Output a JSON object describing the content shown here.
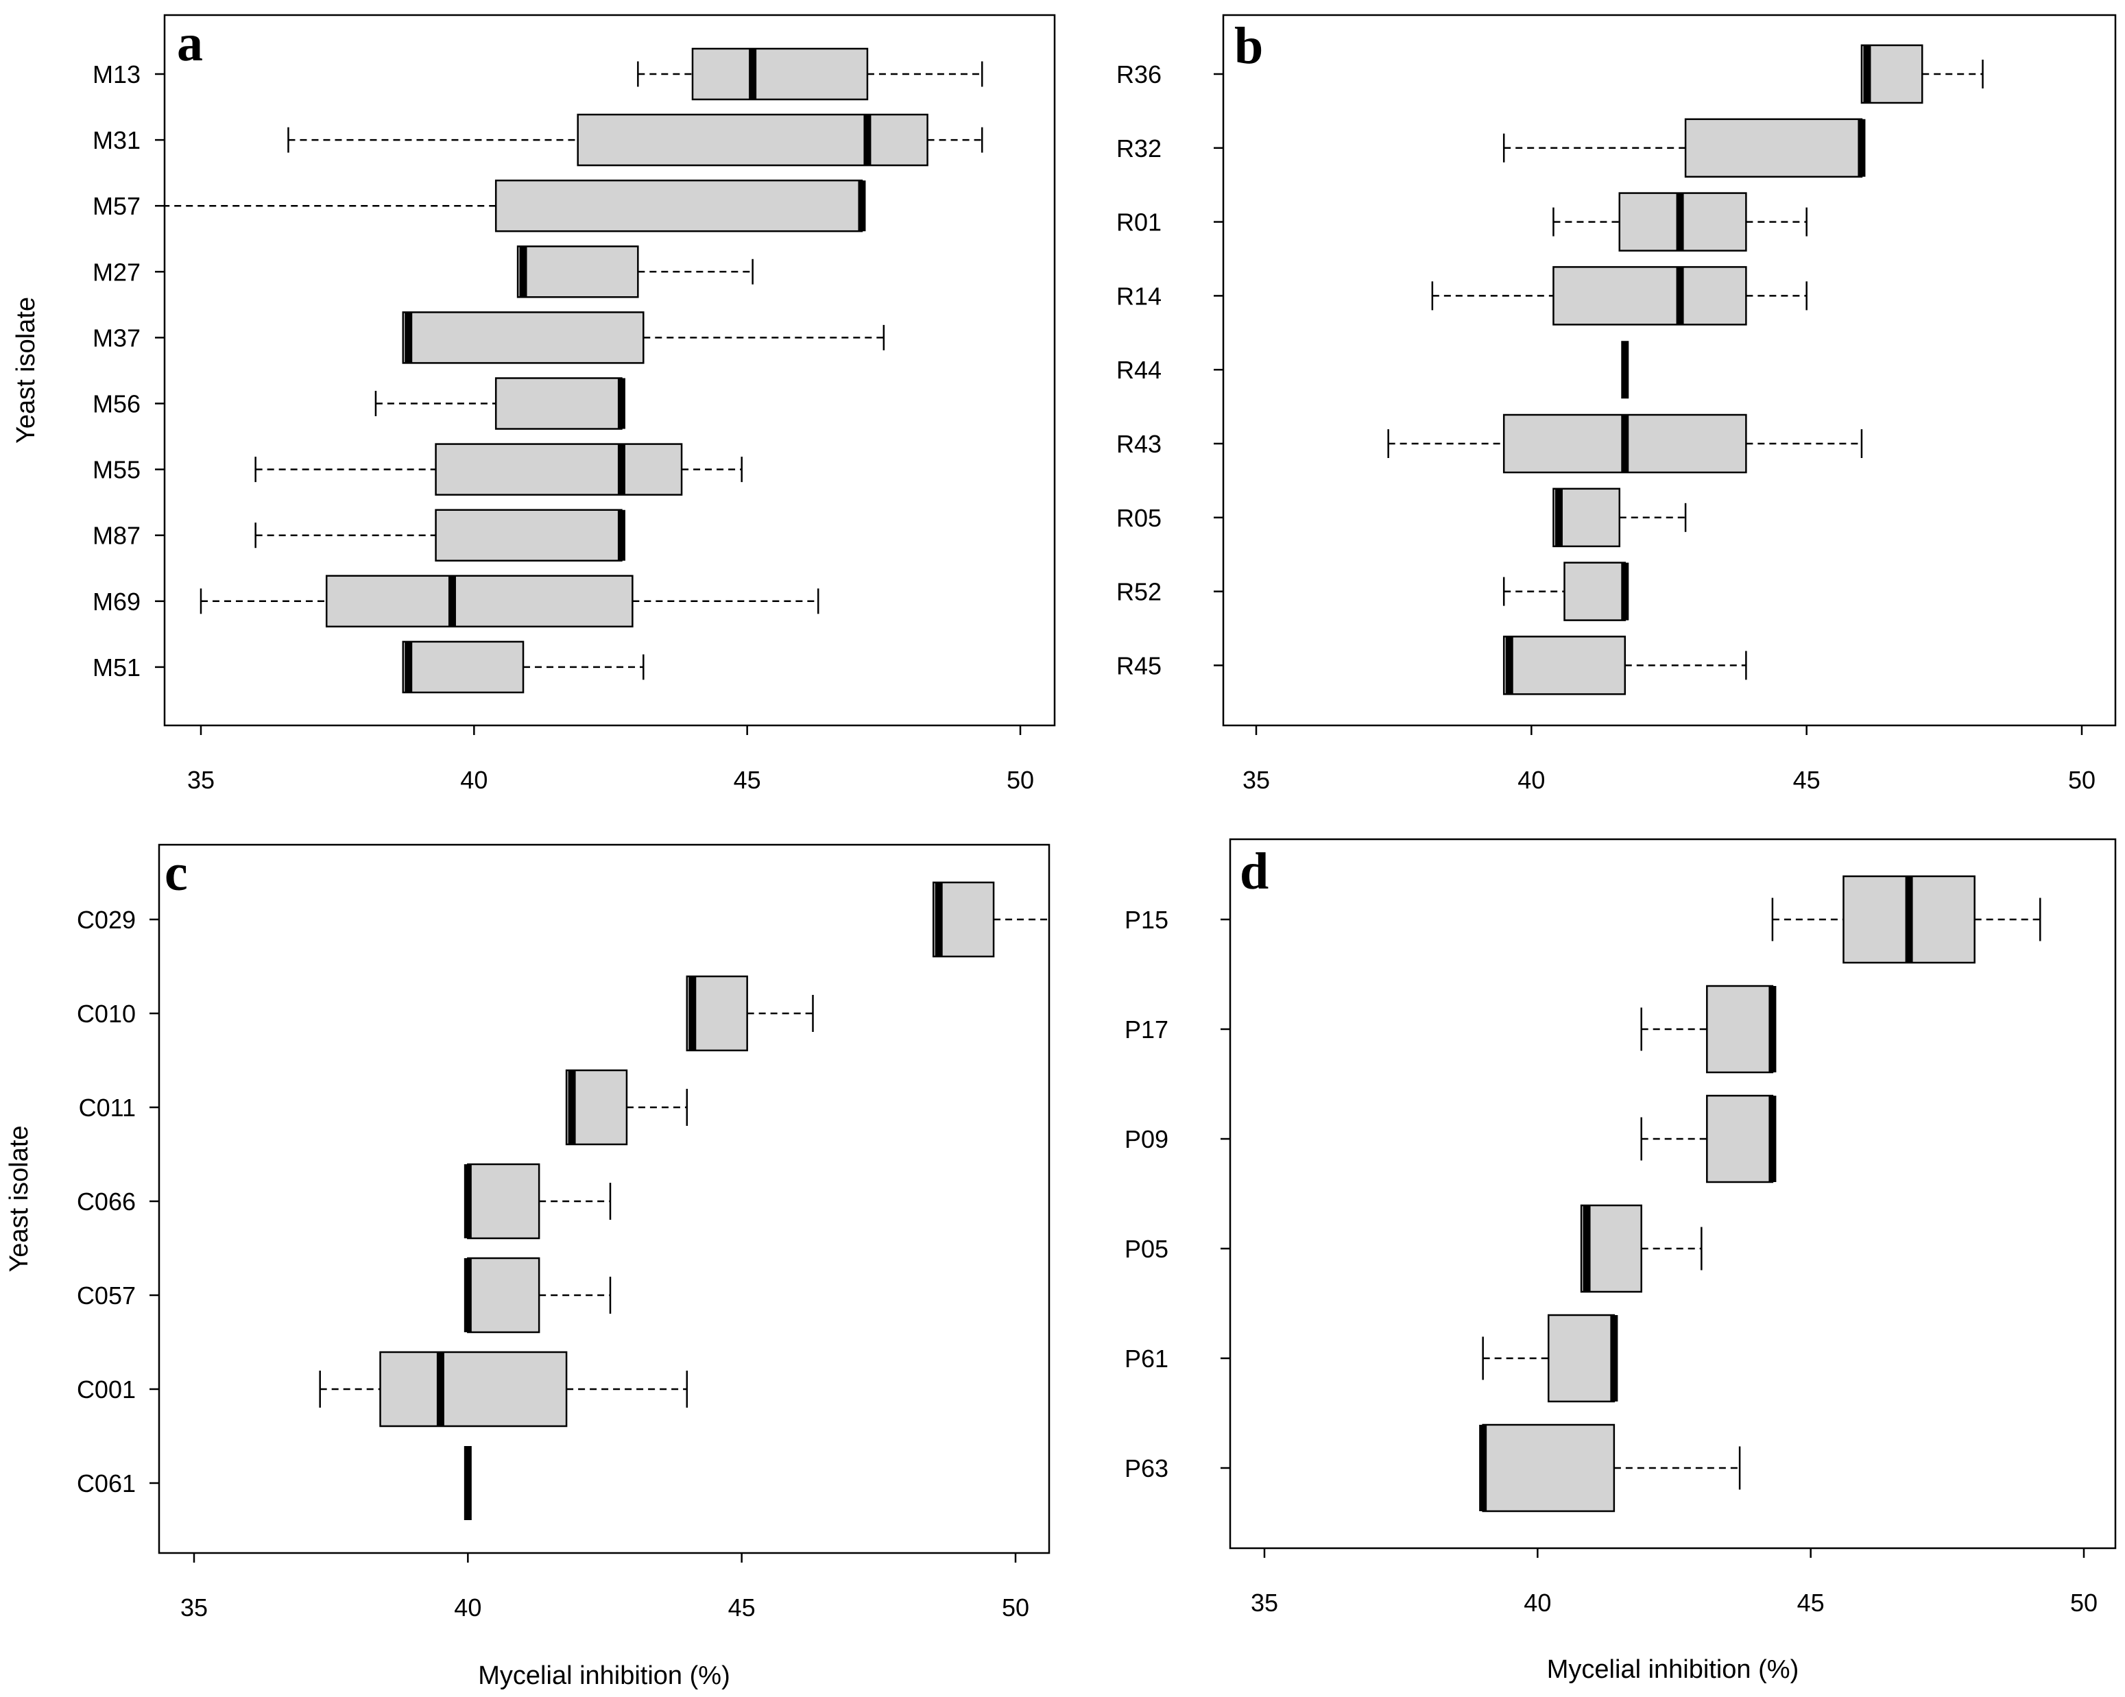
{
  "axis_title_x": "Mycelial inhibition (%)",
  "axis_title_y": "Yeast isolate",
  "chart_data": [
    {
      "panel": "a",
      "type": "boxplot",
      "orientation": "horizontal",
      "xlabel": "",
      "ylabel": "Yeast isolate",
      "xlim": [
        34.3,
        50.6
      ],
      "xticks": [
        35,
        40,
        45,
        50
      ],
      "categories": [
        "M13",
        "M31",
        "M57",
        "M27",
        "M37",
        "M56",
        "M55",
        "M87",
        "M69",
        "M51"
      ],
      "boxes": [
        {
          "min": 43.0,
          "q1": 44.0,
          "median": 45.1,
          "q3": 47.2,
          "max": 49.3
        },
        {
          "min": 36.6,
          "q1": 41.9,
          "median": 47.2,
          "q3": 48.3,
          "max": 49.3
        },
        {
          "min": 34.3,
          "q1": 40.4,
          "median": 47.1,
          "q3": 47.1,
          "max": 47.1
        },
        {
          "min": 40.8,
          "q1": 40.8,
          "median": 40.9,
          "q3": 43.0,
          "max": 45.1
        },
        {
          "min": 38.7,
          "q1": 38.7,
          "median": 38.8,
          "q3": 43.1,
          "max": 47.5
        },
        {
          "min": 38.2,
          "q1": 40.4,
          "median": 42.7,
          "q3": 42.7,
          "max": 42.7
        },
        {
          "min": 36.0,
          "q1": 39.3,
          "median": 42.7,
          "q3": 43.8,
          "max": 44.9
        },
        {
          "min": 36.0,
          "q1": 39.3,
          "median": 42.7,
          "q3": 42.7,
          "max": 42.7
        },
        {
          "min": 35.0,
          "q1": 37.3,
          "median": 39.6,
          "q3": 42.9,
          "max": 46.3
        },
        {
          "min": 38.7,
          "q1": 38.7,
          "median": 38.8,
          "q3": 40.9,
          "max": 43.1
        }
      ]
    },
    {
      "panel": "b",
      "type": "boxplot",
      "orientation": "horizontal",
      "xlabel": "",
      "ylabel": "",
      "xlim": [
        34.3,
        50.6
      ],
      "xticks": [
        35,
        40,
        45,
        50
      ],
      "categories": [
        "R36",
        "R32",
        "R01",
        "R14",
        "R44",
        "R43",
        "R05",
        "R52",
        "R45"
      ],
      "boxes": [
        {
          "min": 46.0,
          "q1": 46.0,
          "median": 46.1,
          "q3": 47.1,
          "max": 48.2
        },
        {
          "min": 39.5,
          "q1": 42.8,
          "median": 46.0,
          "q3": 46.0,
          "max": 46.0
        },
        {
          "min": 40.4,
          "q1": 41.6,
          "median": 42.7,
          "q3": 43.9,
          "max": 45.0
        },
        {
          "min": 38.2,
          "q1": 40.4,
          "median": 42.7,
          "q3": 43.9,
          "max": 45.0
        },
        {
          "min": 41.7,
          "q1": 41.7,
          "median": 41.7,
          "q3": 41.7,
          "max": 41.7
        },
        {
          "min": 37.4,
          "q1": 39.5,
          "median": 41.7,
          "q3": 43.9,
          "max": 46.0
        },
        {
          "min": 40.4,
          "q1": 40.4,
          "median": 40.5,
          "q3": 41.6,
          "max": 42.8
        },
        {
          "min": 39.5,
          "q1": 40.6,
          "median": 41.7,
          "q3": 41.7,
          "max": 41.7
        },
        {
          "min": 39.5,
          "q1": 39.5,
          "median": 39.6,
          "q3": 41.7,
          "max": 43.9
        }
      ]
    },
    {
      "panel": "c",
      "type": "boxplot",
      "orientation": "horizontal",
      "xlabel": "Mycelial inhibition (%)",
      "ylabel": "Yeast isolate",
      "xlim": [
        34.4,
        50.6
      ],
      "xticks": [
        35,
        40,
        45,
        50
      ],
      "categories": [
        "C029",
        "C010",
        "C011",
        "C066",
        "C057",
        "C001",
        "C061"
      ],
      "boxes": [
        {
          "min": 48.5,
          "q1": 48.5,
          "median": 48.6,
          "q3": 49.6,
          "max": 50.6
        },
        {
          "min": 44.0,
          "q1": 44.0,
          "median": 44.1,
          "q3": 45.1,
          "max": 46.3
        },
        {
          "min": 41.8,
          "q1": 41.8,
          "median": 41.9,
          "q3": 42.9,
          "max": 44.0
        },
        {
          "min": 40.0,
          "q1": 40.0,
          "median": 40.0,
          "q3": 41.3,
          "max": 42.6
        },
        {
          "min": 40.0,
          "q1": 40.0,
          "median": 40.0,
          "q3": 41.3,
          "max": 42.6
        },
        {
          "min": 37.3,
          "q1": 38.4,
          "median": 39.5,
          "q3": 41.8,
          "max": 44.0
        },
        {
          "min": 40.0,
          "q1": 40.0,
          "median": 40.0,
          "q3": 40.0,
          "max": 40.0
        }
      ]
    },
    {
      "panel": "d",
      "type": "boxplot",
      "orientation": "horizontal",
      "xlabel": "Mycelial inhibition (%)",
      "ylabel": "",
      "xlim": [
        34.4,
        50.6
      ],
      "xticks": [
        35,
        40,
        45,
        50
      ],
      "categories": [
        "P15",
        "P17",
        "P09",
        "P05",
        "P61",
        "P63"
      ],
      "boxes": [
        {
          "min": 44.3,
          "q1": 45.6,
          "median": 46.8,
          "q3": 48.0,
          "max": 49.2
        },
        {
          "min": 41.9,
          "q1": 43.1,
          "median": 44.3,
          "q3": 44.3,
          "max": 44.3
        },
        {
          "min": 41.9,
          "q1": 43.1,
          "median": 44.3,
          "q3": 44.3,
          "max": 44.3
        },
        {
          "min": 40.8,
          "q1": 40.8,
          "median": 40.9,
          "q3": 41.9,
          "max": 43.0
        },
        {
          "min": 39.0,
          "q1": 40.2,
          "median": 41.4,
          "q3": 41.4,
          "max": 41.4
        },
        {
          "min": 39.0,
          "q1": 39.0,
          "median": 39.0,
          "q3": 41.4,
          "max": 43.7
        }
      ]
    }
  ]
}
